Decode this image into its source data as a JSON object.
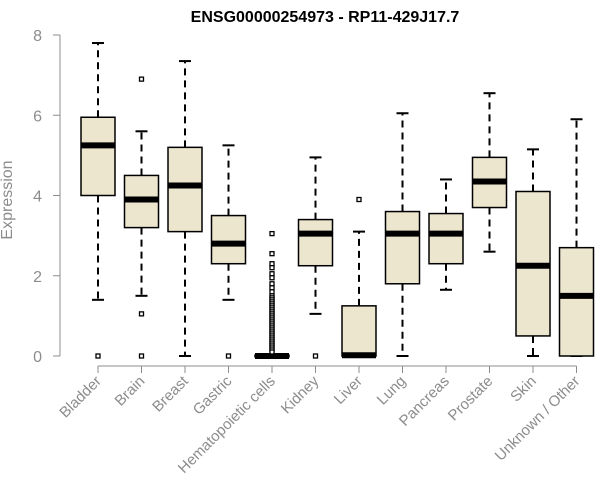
{
  "chart_data": {
    "type": "boxplot",
    "title": "ENSG00000254973 - RP11-429J17.7",
    "xlabel": "",
    "ylabel": "Expression",
    "ylim": [
      0,
      8
    ],
    "yticks": [
      0,
      2,
      4,
      6,
      8
    ],
    "grid": false,
    "colors": {
      "box_fill": "#ece6cf",
      "box_stroke": "#000000",
      "axis": "#8c8c8c",
      "title": "#000000"
    },
    "categories": [
      "Bladder",
      "Brain",
      "Breast",
      "Gastric",
      "Hematopoietic cells",
      "Kidney",
      "Liver",
      "Lung",
      "Pancreas",
      "Prostate",
      "Skin",
      "Unknown / Other"
    ],
    "boxes": [
      {
        "category": "Bladder",
        "whisker_low": 1.4,
        "q1": 4.0,
        "median": 5.25,
        "q3": 5.95,
        "whisker_high": 7.8,
        "outliers": [
          0.0
        ]
      },
      {
        "category": "Brain",
        "whisker_low": 1.5,
        "q1": 3.2,
        "median": 3.9,
        "q3": 4.5,
        "whisker_high": 5.6,
        "outliers": [
          6.9,
          1.05,
          0.0
        ]
      },
      {
        "category": "Breast",
        "whisker_low": 0.0,
        "q1": 3.1,
        "median": 4.25,
        "q3": 5.2,
        "whisker_high": 7.35,
        "outliers": []
      },
      {
        "category": "Gastric",
        "whisker_low": 1.4,
        "q1": 2.3,
        "median": 2.8,
        "q3": 3.5,
        "whisker_high": 5.25,
        "outliers": [
          0.0
        ]
      },
      {
        "category": "Hematopoietic cells",
        "whisker_low": 0.0,
        "q1": 0.0,
        "median": 0.0,
        "q3": 0.02,
        "whisker_high": 0.05,
        "outliers": [
          3.05,
          2.55,
          2.3,
          2.2,
          2.05,
          1.95,
          1.8,
          1.7,
          1.6,
          1.5,
          1.45,
          1.4,
          1.35,
          1.3,
          1.25,
          1.2,
          1.15,
          1.1,
          1.05,
          1.0,
          0.95,
          0.9,
          0.85,
          0.8,
          0.75,
          0.7,
          0.65,
          0.6,
          0.55,
          0.5,
          0.45,
          0.4,
          0.35,
          0.3,
          0.25,
          0.2,
          0.15,
          0.1
        ]
      },
      {
        "category": "Kidney",
        "whisker_low": 1.05,
        "q1": 2.25,
        "median": 3.05,
        "q3": 3.4,
        "whisker_high": 4.95,
        "outliers": [
          0.0
        ]
      },
      {
        "category": "Liver",
        "whisker_low": 0.0,
        "q1": 0.0,
        "median": 0.02,
        "q3": 1.25,
        "whisker_high": 3.1,
        "outliers": [
          3.9
        ]
      },
      {
        "category": "Lung",
        "whisker_low": 0.0,
        "q1": 1.8,
        "median": 3.05,
        "q3": 3.6,
        "whisker_high": 6.05,
        "outliers": []
      },
      {
        "category": "Pancreas",
        "whisker_low": 1.65,
        "q1": 2.3,
        "median": 3.05,
        "q3": 3.55,
        "whisker_high": 4.4,
        "outliers": []
      },
      {
        "category": "Prostate",
        "whisker_low": 2.6,
        "q1": 3.7,
        "median": 4.35,
        "q3": 4.95,
        "whisker_high": 6.55,
        "outliers": []
      },
      {
        "category": "Skin",
        "whisker_low": 0.0,
        "q1": 0.5,
        "median": 2.25,
        "q3": 4.1,
        "whisker_high": 5.15,
        "outliers": []
      },
      {
        "category": "Unknown / Other",
        "whisker_low": 0.0,
        "q1": 0.0,
        "median": 1.5,
        "q3": 2.7,
        "whisker_high": 5.9,
        "outliers": []
      }
    ]
  }
}
